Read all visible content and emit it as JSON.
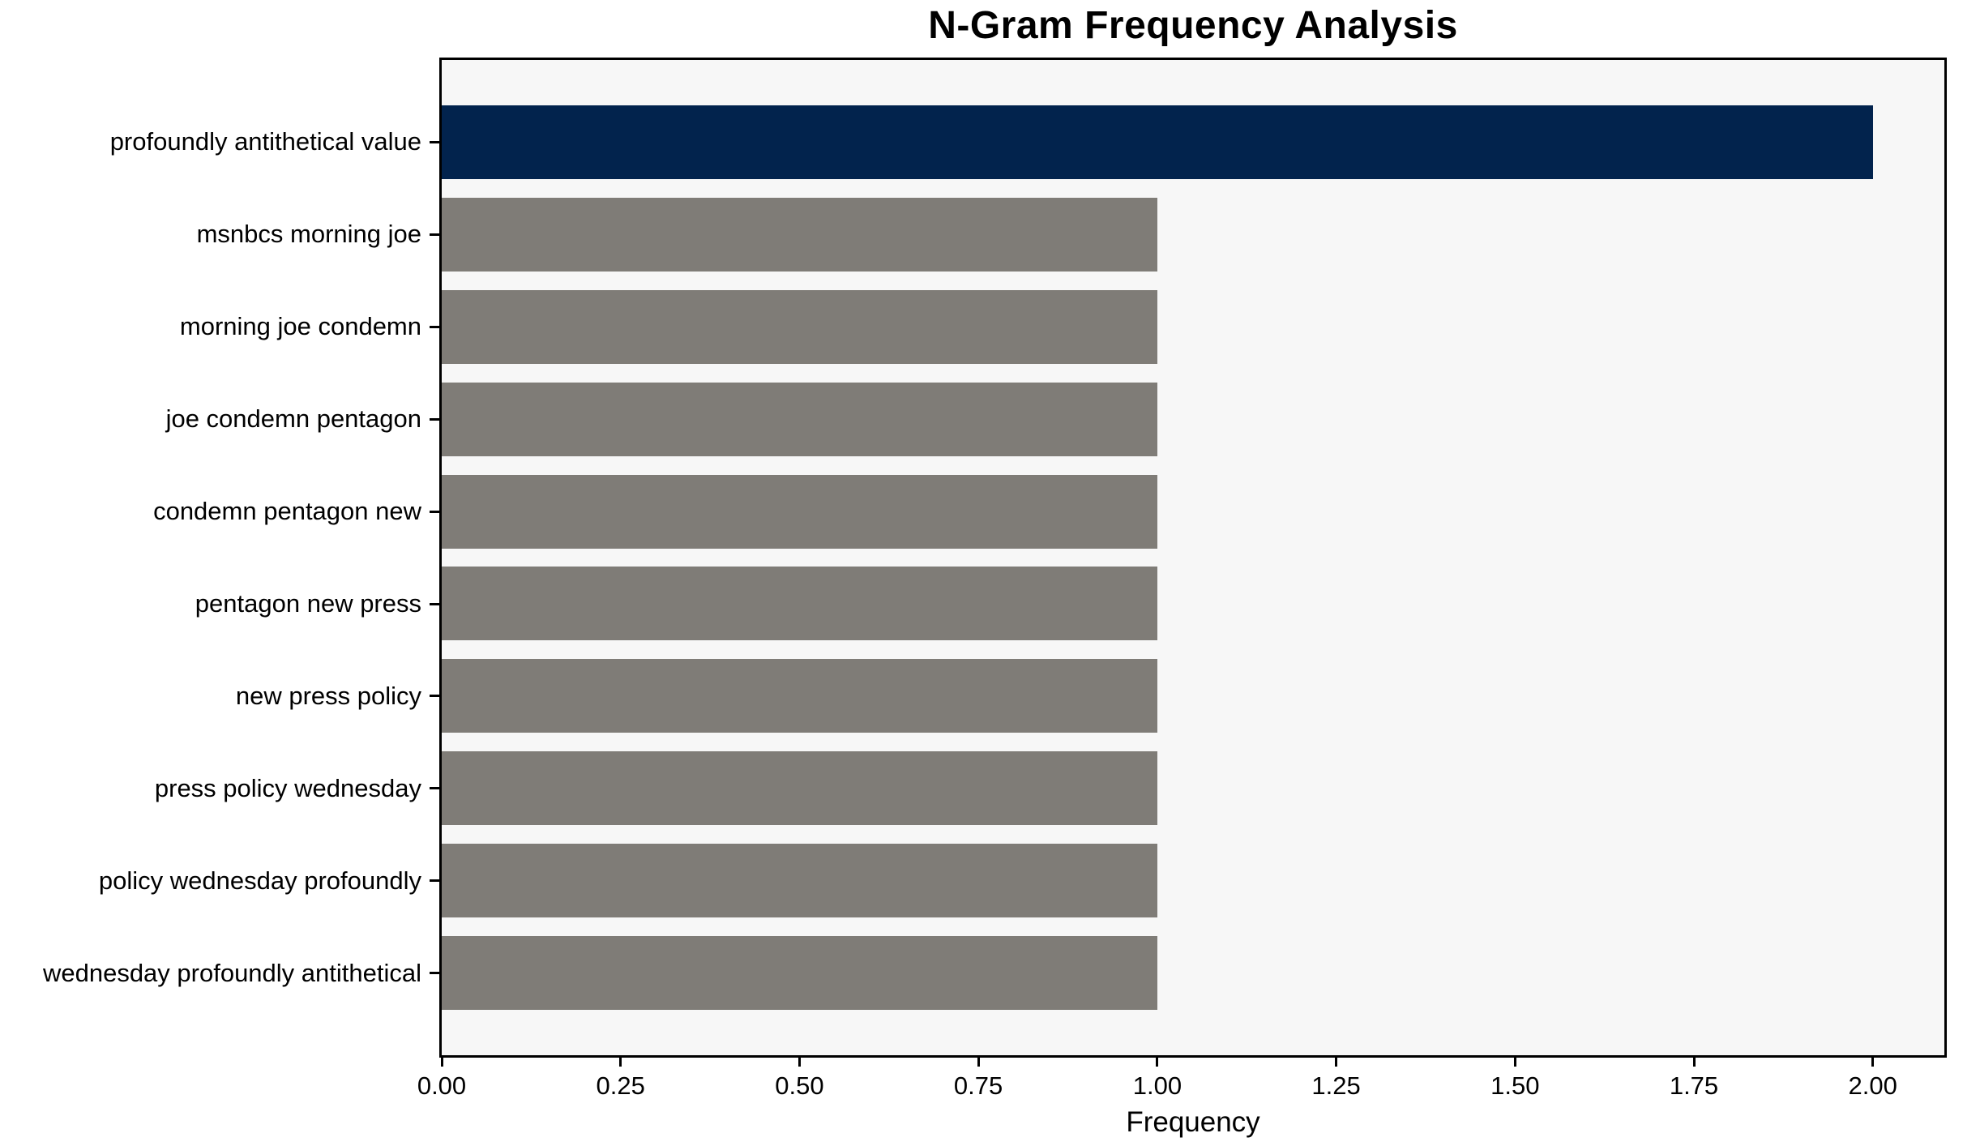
{
  "title": "N-Gram Frequency Analysis",
  "chart_data": {
    "type": "bar",
    "orientation": "horizontal",
    "title": "N-Gram Frequency Analysis",
    "xlabel": "Frequency",
    "ylabel": "",
    "categories": [
      "profoundly antithetical value",
      "msnbcs morning joe",
      "morning joe condemn",
      "joe condemn pentagon",
      "condemn pentagon new",
      "pentagon new press",
      "new press policy",
      "press policy wednesday",
      "policy wednesday profoundly",
      "wednesday profoundly antithetical"
    ],
    "values": [
      2,
      1,
      1,
      1,
      1,
      1,
      1,
      1,
      1,
      1
    ],
    "bar_colors": [
      "#02234d",
      "#7f7c77",
      "#7f7c77",
      "#7f7c77",
      "#7f7c77",
      "#7f7c77",
      "#7f7c77",
      "#7f7c77",
      "#7f7c77",
      "#7f7c77"
    ],
    "xlim": [
      0,
      2.1
    ],
    "xticks": [
      0,
      0.25,
      0.5,
      0.75,
      1.0,
      1.25,
      1.5,
      1.75,
      2.0
    ],
    "xtick_labels": [
      "0.00",
      "0.25",
      "0.50",
      "0.75",
      "1.00",
      "1.25",
      "1.50",
      "1.75",
      "2.00"
    ],
    "grid": false,
    "legend": null,
    "bar_relative_height": 0.8,
    "colors": {
      "highlight": "#02234d",
      "base": "#7f7c77",
      "plot_background": "#f7f7f7",
      "figure_background": "#ffffff",
      "spine": "#000000",
      "text": "#000000"
    }
  }
}
